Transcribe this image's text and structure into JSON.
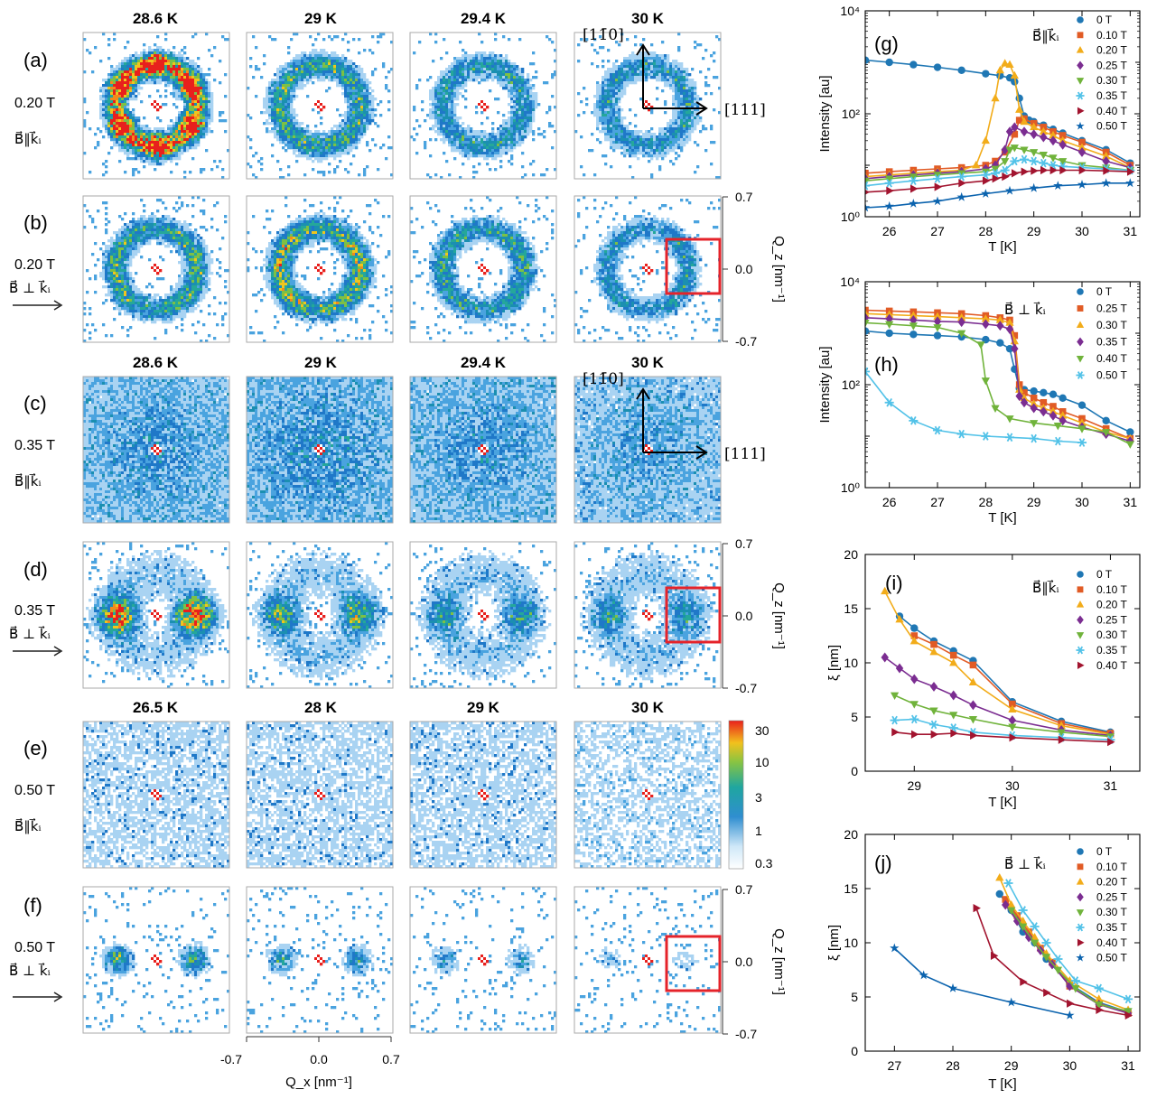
{
  "figure": {
    "row_labels": [
      "(a)",
      "(b)",
      "(c)",
      "(d)",
      "(e)",
      "(f)"
    ],
    "row_fields": [
      "0.20 T",
      "0.20 T",
      "0.35 T",
      "0.35 T",
      "0.50 T",
      "0.50 T"
    ],
    "geom_parallel": "B⃗‖k⃗ᵢ",
    "geom_perp": "B⃗ ⊥ k⃗ᵢ",
    "col_titles_top": [
      "28.6 K",
      "29 K",
      "29.4 K",
      "30 K"
    ],
    "col_titles_mid": [
      "28.6 K",
      "29 K",
      "29.4 K",
      "30 K"
    ],
    "col_titles_bot": [
      "26.5 K",
      "28 K",
      "29 K",
      "30 K"
    ],
    "direction_labels": [
      "[11̄0]",
      "[111]"
    ],
    "qz_label": "Q_z [nm⁻¹]",
    "qx_label": "Q_x [nm⁻¹]",
    "q_ticks": [
      "0.7",
      "0.0",
      "-0.7"
    ],
    "qx_ticks": [
      "-0.7",
      "0.0",
      "0.7"
    ],
    "colorbar_ticks": [
      "30",
      "10",
      "3",
      "1",
      "0.3"
    ],
    "panel_intensity": {
      "a": {
        "type": "ring_hex",
        "level": [
          3.0,
          1.4,
          1.0,
          0.9
        ]
      },
      "b": {
        "type": "ring_side",
        "level": [
          1.4,
          1.8,
          1.2,
          0.85
        ]
      },
      "c": {
        "type": "diffuse",
        "level": [
          0.35,
          0.4,
          0.35,
          0.3
        ]
      },
      "d": {
        "type": "two_spots",
        "level": [
          3.5,
          1.6,
          1.0,
          0.8
        ]
      },
      "e": {
        "type": "empty",
        "level": [
          0.15,
          0.15,
          0.15,
          0.12
        ]
      },
      "f": {
        "type": "two_spots_sharp",
        "level": [
          1.6,
          1.0,
          0.6,
          0.25
        ]
      }
    }
  },
  "colors": [
    "#1f77b4",
    "#e15b25",
    "#f2ac1a",
    "#7b2d91",
    "#70b33b",
    "#52c2e8",
    "#a2142f",
    "#0b63ae"
  ],
  "chart_data": [
    {
      "type": "line",
      "panel": "(g)",
      "geometry": "B⃗‖k⃗ᵢ",
      "xlabel": "T [K]",
      "ylabel": "Intensity [au]",
      "xlim": [
        25.5,
        31.2
      ],
      "ylim": [
        1,
        10000
      ],
      "yscale": "log",
      "x_ticks": [
        26,
        27,
        28,
        29,
        30,
        31
      ],
      "y_ticks_label": [
        "10⁰",
        "10²",
        "10⁴"
      ],
      "series": [
        {
          "name": "0 T",
          "marker": "circle",
          "x": [
            25.5,
            26,
            26.5,
            27,
            27.5,
            28,
            28.3,
            28.5,
            28.6,
            28.7,
            28.8,
            28.9,
            29,
            29.2,
            29.4,
            29.6,
            30,
            30.5,
            31
          ],
          "y": [
            1100,
            1000,
            900,
            800,
            700,
            600,
            550,
            500,
            420,
            200,
            90,
            75,
            70,
            60,
            50,
            42,
            30,
            20,
            11
          ]
        },
        {
          "name": "0.10 T",
          "marker": "square",
          "x": [
            25.5,
            26,
            26.5,
            27,
            27.5,
            28,
            28.2,
            28.4,
            28.6,
            28.7,
            28.8,
            29,
            29.2,
            29.4,
            29.6,
            30,
            30.5,
            31
          ],
          "y": [
            7,
            7.5,
            8,
            8.5,
            9,
            10,
            12,
            18,
            40,
            75,
            80,
            65,
            55,
            45,
            38,
            28,
            18,
            10
          ]
        },
        {
          "name": "0.20 T",
          "marker": "triangle",
          "x": [
            25.5,
            26,
            26.5,
            27,
            27.5,
            27.8,
            28,
            28.2,
            28.3,
            28.4,
            28.5,
            28.6,
            28.7,
            28.8,
            29,
            29.2,
            29.4,
            29.6,
            30,
            30.5,
            31
          ],
          "y": [
            6,
            6.5,
            7,
            7.5,
            8,
            10,
            30,
            200,
            700,
            950,
            900,
            550,
            120,
            70,
            55,
            45,
            38,
            30,
            22,
            15,
            9
          ]
        },
        {
          "name": "0.25 T",
          "marker": "diamond",
          "x": [
            25.5,
            26,
            26.5,
            27,
            27.5,
            28,
            28.2,
            28.4,
            28.5,
            28.6,
            28.8,
            29,
            29.2,
            29.4,
            29.6,
            30,
            30.5,
            31
          ],
          "y": [
            5.5,
            6,
            6.5,
            7,
            7.5,
            8.5,
            10,
            20,
            45,
            55,
            45,
            40,
            35,
            30,
            25,
            18,
            12,
            9
          ]
        },
        {
          "name": "0.30 T",
          "marker": "triangle-down",
          "x": [
            25.5,
            26,
            26.5,
            27,
            27.5,
            28,
            28.2,
            28.4,
            28.5,
            28.6,
            28.8,
            29,
            29.2,
            29.4,
            29.6,
            30,
            30.5,
            31
          ],
          "y": [
            5,
            5.5,
            6,
            6.5,
            7,
            7.5,
            8.5,
            12,
            20,
            22,
            20,
            18,
            16,
            14,
            12,
            10,
            9,
            8
          ]
        },
        {
          "name": "0.35 T",
          "marker": "star6",
          "x": [
            25.5,
            26,
            26.5,
            27,
            27.5,
            28,
            28.2,
            28.4,
            28.6,
            28.8,
            29,
            29.2,
            29.4,
            29.6,
            30,
            30.5,
            31
          ],
          "y": [
            4,
            4.5,
            5,
            5.5,
            6,
            6.5,
            7,
            8,
            12,
            13,
            12,
            11,
            10,
            9.5,
            9,
            8.5,
            8
          ]
        },
        {
          "name": "0.40 T",
          "marker": "triangle-right",
          "x": [
            25.5,
            26,
            26.5,
            27,
            27.5,
            28,
            28.2,
            28.4,
            28.6,
            28.8,
            29,
            29.2,
            29.4,
            29.6,
            30,
            30.5,
            31
          ],
          "y": [
            3,
            3.2,
            3.5,
            3.8,
            4.5,
            5,
            5.5,
            6,
            7,
            7.5,
            7.8,
            8,
            8,
            8,
            8,
            7.8,
            7.5
          ]
        },
        {
          "name": "0.50 T",
          "marker": "star5",
          "x": [
            25.5,
            26,
            26.5,
            27,
            27.5,
            28,
            28.5,
            29,
            29.5,
            30,
            30.5,
            31
          ],
          "y": [
            1.5,
            1.6,
            1.8,
            2,
            2.4,
            2.8,
            3.2,
            3.6,
            4,
            4.2,
            4.5,
            4.5
          ]
        }
      ]
    },
    {
      "type": "line",
      "panel": "(h)",
      "geometry": "B⃗ ⊥ k⃗ᵢ",
      "xlabel": "T [K]",
      "ylabel": "Intensity [au]",
      "xlim": [
        25.5,
        31.2
      ],
      "ylim": [
        1,
        10000
      ],
      "yscale": "log",
      "x_ticks": [
        26,
        27,
        28,
        29,
        30,
        31
      ],
      "y_ticks_label": [
        "10⁰",
        "10²",
        "10⁴"
      ],
      "series": [
        {
          "name": "0 T",
          "marker": "circle",
          "x": [
            25.5,
            26,
            26.5,
            27,
            27.5,
            28,
            28.3,
            28.5,
            28.6,
            28.7,
            28.8,
            29,
            29.2,
            29.4,
            29.6,
            30,
            30.5,
            31
          ],
          "y": [
            1100,
            1000,
            950,
            900,
            850,
            750,
            650,
            500,
            200,
            85,
            80,
            75,
            70,
            65,
            55,
            40,
            20,
            12
          ]
        },
        {
          "name": "0.25 T",
          "marker": "square",
          "x": [
            25.5,
            26,
            26.5,
            27,
            27.5,
            28,
            28.3,
            28.5,
            28.6,
            28.7,
            28.8,
            29,
            29.2,
            29.4,
            29.6,
            30,
            30.5,
            31
          ],
          "y": [
            2800,
            2700,
            2600,
            2500,
            2400,
            2200,
            2000,
            1800,
            900,
            100,
            70,
            55,
            45,
            38,
            30,
            22,
            14,
            9
          ]
        },
        {
          "name": "0.30 T",
          "marker": "triangle",
          "x": [
            25.5,
            26,
            26.5,
            27,
            27.5,
            28,
            28.3,
            28.5,
            28.6,
            28.7,
            28.8,
            29,
            29.2,
            29.4,
            29.6,
            30,
            30.5,
            31
          ],
          "y": [
            2400,
            2300,
            2200,
            2100,
            2000,
            1900,
            1800,
            1600,
            700,
            80,
            55,
            42,
            35,
            30,
            25,
            18,
            12,
            9
          ]
        },
        {
          "name": "0.35 T",
          "marker": "diamond",
          "x": [
            25.5,
            26,
            26.5,
            27,
            27.5,
            28,
            28.3,
            28.5,
            28.6,
            28.7,
            28.8,
            29,
            29.2,
            29.4,
            29.6,
            30,
            30.5,
            31
          ],
          "y": [
            2000,
            1900,
            1800,
            1700,
            1650,
            1500,
            1400,
            1200,
            500,
            60,
            45,
            35,
            30,
            25,
            20,
            15,
            11,
            8
          ]
        },
        {
          "name": "0.40 T",
          "marker": "triangle-down",
          "x": [
            25.5,
            26,
            26.5,
            27,
            27.5,
            27.9,
            28,
            28.2,
            28.5,
            29,
            29.5,
            30,
            30.5,
            31
          ],
          "y": [
            1600,
            1500,
            1400,
            1300,
            1000,
            600,
            120,
            35,
            22,
            18,
            16,
            14,
            12,
            7
          ]
        },
        {
          "name": "0.50 T",
          "marker": "star6",
          "x": [
            25.5,
            26,
            26.5,
            27,
            27.5,
            28,
            28.5,
            29,
            29.5,
            30
          ],
          "y": [
            180,
            45,
            20,
            13,
            11,
            10,
            9.5,
            9,
            8,
            7.5
          ]
        }
      ]
    },
    {
      "type": "line",
      "panel": "(i)",
      "geometry": "B⃗‖k⃗ᵢ",
      "xlabel": "T [K]",
      "ylabel": "ξ [nm]",
      "xlim": [
        28.5,
        31.3
      ],
      "ylim": [
        0,
        20
      ],
      "x_ticks": [
        29,
        30,
        31
      ],
      "y_ticks": [
        0,
        5,
        10,
        15,
        20
      ],
      "series": [
        {
          "name": "0 T",
          "marker": "circle",
          "x": [
            28.85,
            29,
            29.2,
            29.4,
            29.6,
            30,
            30.5,
            31
          ],
          "y": [
            14.3,
            13.2,
            12,
            11.1,
            10.2,
            6.4,
            4.6,
            3.6
          ]
        },
        {
          "name": "0.10 T",
          "marker": "square",
          "x": [
            29,
            29.2,
            29.4,
            29.6,
            30,
            30.5,
            31
          ],
          "y": [
            12.5,
            11.7,
            10.7,
            9.8,
            6.2,
            4.4,
            3.5
          ]
        },
        {
          "name": "0.20 T",
          "marker": "triangle",
          "x": [
            28.7,
            28.85,
            29,
            29.2,
            29.4,
            29.6,
            30,
            30.5,
            31
          ],
          "y": [
            16.6,
            14,
            12,
            11,
            10,
            8.2,
            5.7,
            4.2,
            3.4
          ]
        },
        {
          "name": "0.25 T",
          "marker": "diamond",
          "x": [
            28.7,
            28.85,
            29,
            29.2,
            29.4,
            29.6,
            30,
            30.5,
            31
          ],
          "y": [
            10.5,
            9.5,
            8.5,
            7.8,
            7,
            6.1,
            4.7,
            3.8,
            3.3
          ]
        },
        {
          "name": "0.30 T",
          "marker": "triangle-down",
          "x": [
            28.8,
            29,
            29.2,
            29.4,
            29.6,
            30,
            30.5,
            31
          ],
          "y": [
            7,
            6.2,
            5.6,
            5.2,
            4.8,
            4.1,
            3.6,
            3.2
          ]
        },
        {
          "name": "0.35 T",
          "marker": "star6",
          "x": [
            28.8,
            29,
            29.2,
            29.4,
            29.6,
            30,
            30.5,
            31
          ],
          "y": [
            4.7,
            4.8,
            4.3,
            4,
            3.6,
            3.3,
            3.1,
            2.9
          ]
        },
        {
          "name": "0.40 T",
          "marker": "triangle-right",
          "x": [
            28.8,
            29,
            29.2,
            29.4,
            29.6,
            30,
            30.5,
            31
          ],
          "y": [
            3.6,
            3.4,
            3.4,
            3.5,
            3.3,
            3.1,
            2.9,
            2.7
          ]
        }
      ]
    },
    {
      "type": "line",
      "panel": "(j)",
      "geometry": "B⃗ ⊥ k⃗ᵢ",
      "xlabel": "T [K]",
      "ylabel": "ξ [nm]",
      "xlim": [
        26.5,
        31.2
      ],
      "ylim": [
        0,
        20
      ],
      "x_ticks": [
        27,
        28,
        29,
        30,
        31
      ],
      "y_ticks": [
        0,
        5,
        10,
        15,
        20
      ],
      "series": [
        {
          "name": "0 T",
          "marker": "circle",
          "x": [
            28.8,
            29,
            29.2,
            29.4,
            29.6,
            30,
            30.5,
            31
          ],
          "y": [
            14.5,
            13,
            11,
            10,
            8.5,
            6.2,
            4.5,
            3.6
          ]
        },
        {
          "name": "0.10 T",
          "marker": "square",
          "x": [
            28.9,
            29.1,
            29.3,
            29.5,
            29.7,
            30,
            30.5,
            31
          ],
          "y": [
            14,
            12.5,
            11,
            9.5,
            8.2,
            6,
            4.4,
            3.5
          ]
        },
        {
          "name": "0.20 T",
          "marker": "triangle",
          "x": [
            28.8,
            29,
            29.2,
            29.4,
            29.6,
            30,
            30.5,
            31
          ],
          "y": [
            16,
            13.5,
            12,
            10.5,
            9,
            6.5,
            4.8,
            3.8
          ]
        },
        {
          "name": "0.25 T",
          "marker": "diamond",
          "x": [
            28.9,
            29.1,
            29.3,
            29.5,
            29.7,
            30,
            30.5,
            31
          ],
          "y": [
            13.5,
            12,
            10.5,
            9.3,
            8,
            6,
            4.3,
            3.5
          ]
        },
        {
          "name": "0.30 T",
          "marker": "triangle-down",
          "x": [
            29,
            29.2,
            29.4,
            29.6,
            29.8,
            30.1,
            30.5,
            31
          ],
          "y": [
            13,
            11.5,
            10,
            8.7,
            7.5,
            5.8,
            4.3,
            3.7
          ]
        },
        {
          "name": "0.35 T",
          "marker": "star6",
          "x": [
            28.95,
            29.2,
            29.4,
            29.6,
            29.8,
            30.1,
            30.5,
            31
          ],
          "y": [
            15.5,
            13,
            11.5,
            10,
            8.5,
            6.5,
            5.8,
            4.8
          ]
        },
        {
          "name": "0.40 T",
          "marker": "triangle-right",
          "x": [
            28.4,
            28.7,
            29.2,
            29.6,
            30,
            30.5,
            31
          ],
          "y": [
            13.2,
            8.8,
            6.4,
            5.4,
            4.4,
            3.8,
            3.3
          ]
        },
        {
          "name": "0.50 T",
          "marker": "star5",
          "x": [
            27,
            27.5,
            28,
            29,
            30
          ],
          "y": [
            9.5,
            7,
            5.8,
            4.5,
            3.3
          ]
        }
      ]
    }
  ]
}
